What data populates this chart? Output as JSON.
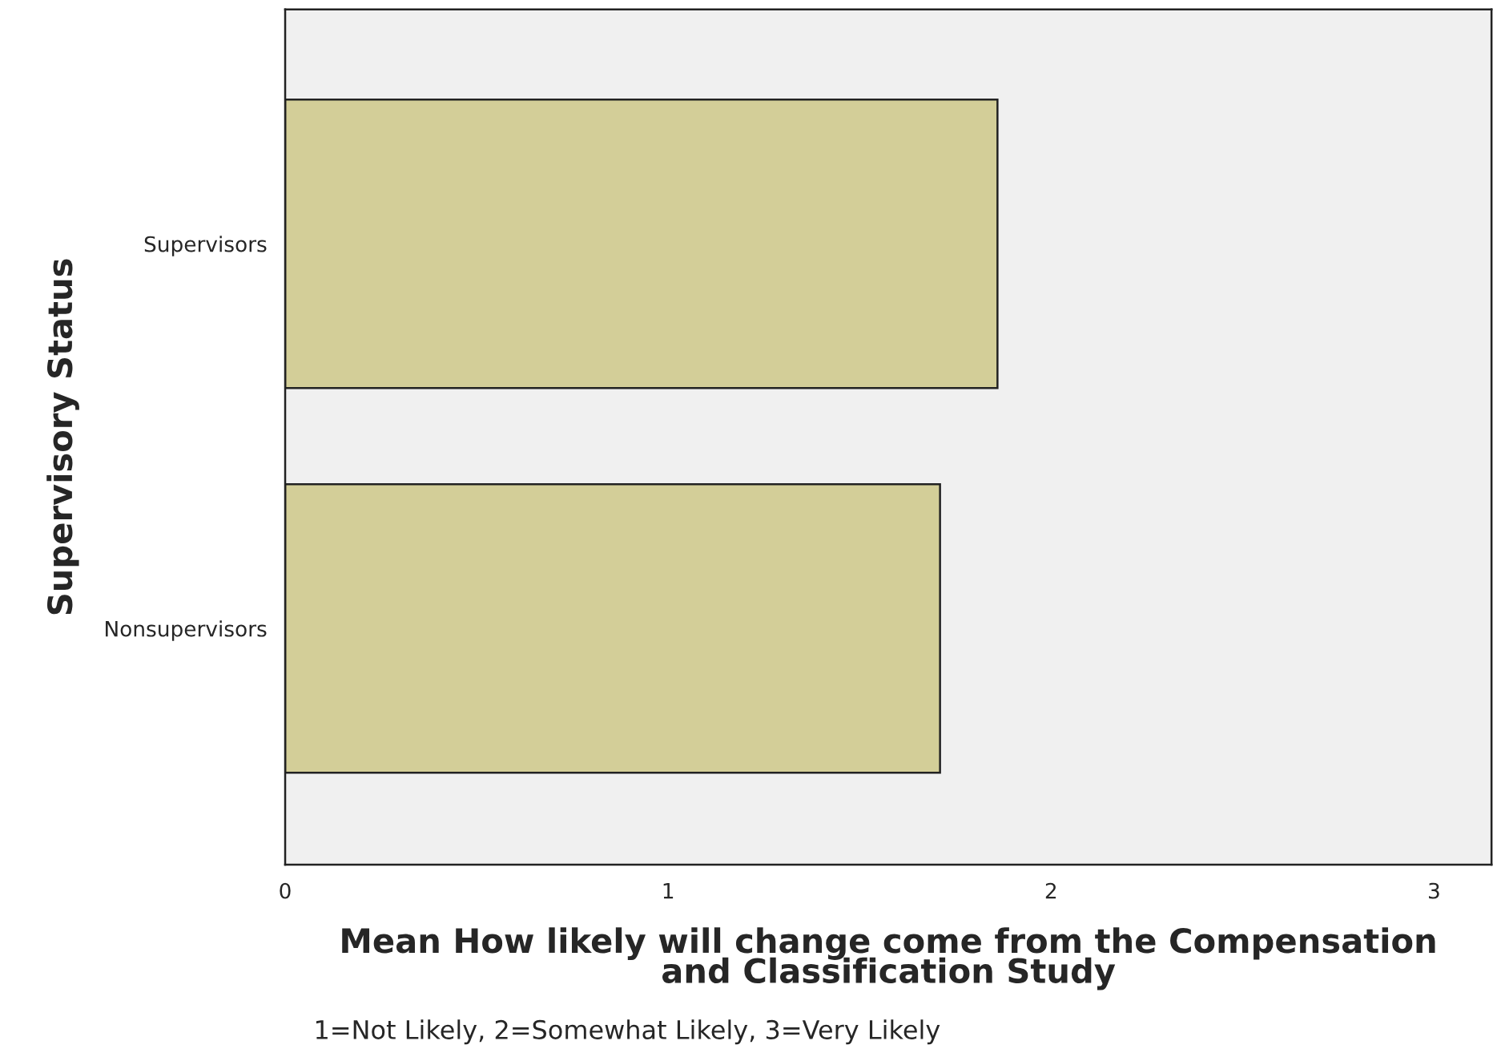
{
  "chart_data": {
    "type": "bar",
    "orientation": "horizontal",
    "categories": [
      "Supervisors",
      "Nonsupervisors"
    ],
    "values": [
      1.86,
      1.71
    ],
    "color": "#d3ce98",
    "xlim": [
      0,
      3.15
    ],
    "xticks": [
      0,
      1,
      2,
      3
    ],
    "xlabel": "Mean How likely will change come from the Compensation\nand Classification Study",
    "ylabel": "Supervisory Status",
    "annotations": [
      "1=Not Likely, 2=Somewhat Likely, 3=Very Likely"
    ],
    "grid": false,
    "legend": false
  }
}
